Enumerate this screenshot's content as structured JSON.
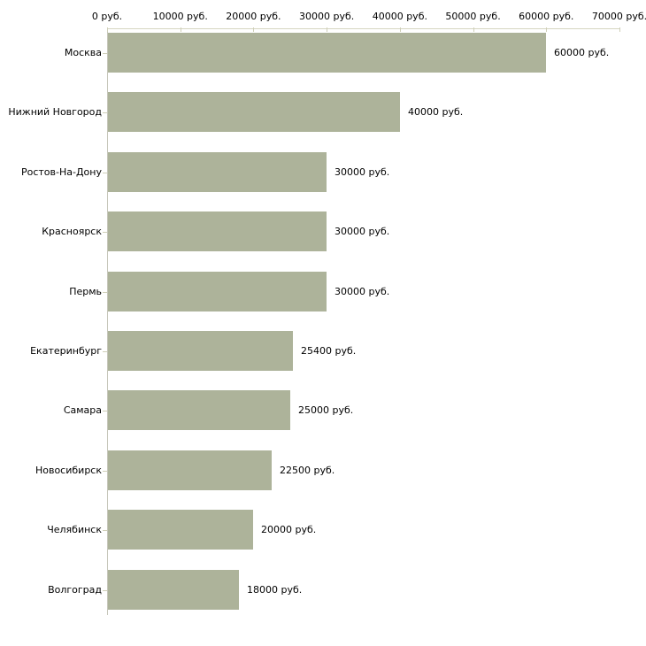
{
  "chart_data": {
    "type": "bar",
    "orientation": "horizontal",
    "title": "",
    "categories": [
      "Москва",
      "Нижний Новгород",
      "Ростов-На-Дону",
      "Красноярск",
      "Пермь",
      "Екатеринбург",
      "Самара",
      "Новосибирск",
      "Челябинск",
      "Волгоград"
    ],
    "values": [
      60000,
      40000,
      30000,
      30000,
      30000,
      25400,
      25000,
      22500,
      20000,
      18000
    ],
    "value_labels": [
      "60000 руб.",
      "40000 руб.",
      "30000 руб.",
      "30000 руб.",
      "30000 руб.",
      "25400 руб.",
      "25000 руб.",
      "22500 руб.",
      "20000 руб.",
      "18000 руб."
    ],
    "x_axis": {
      "position": "top",
      "min": 0,
      "max": 70000,
      "ticks": [
        0,
        10000,
        20000,
        30000,
        40000,
        50000,
        60000,
        70000
      ],
      "tick_labels": [
        "0 руб.",
        "10000 руб.",
        "20000 руб.",
        "30000 руб.",
        "40000 руб.",
        "50000 руб.",
        "60000 руб.",
        "70000 руб."
      ]
    },
    "grid": false,
    "legend": false,
    "colors": {
      "bar_fill": "#adb39a",
      "x_axis_line": "#d6d6c0",
      "y_axis_line": "#c6c6ba",
      "tick_mark": "#cfcfb8",
      "text": "#000000",
      "background": "#ffffff"
    }
  }
}
